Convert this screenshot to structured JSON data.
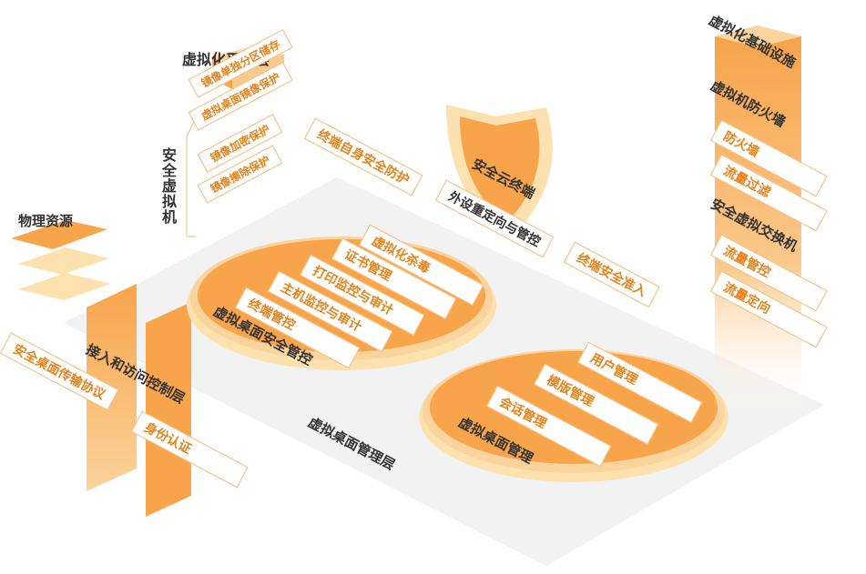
{
  "platform_layer": {
    "title": "虚拟化平台层",
    "side_label": "安全虚拟机",
    "items": [
      "镜像单独分区储存",
      "虚拟桌面镜像保护",
      "镜像加密保护",
      "镜像擦除保护"
    ]
  },
  "endpoint": {
    "self_protect": "终端自身安全防护",
    "cloud_terminal": "安全云终端",
    "peripheral": "外设重定向与管控",
    "access": "终端安全准入"
  },
  "infrastructure": {
    "title": "虚拟化基础设施",
    "firewall_title": "虚拟机防火墙",
    "firewall_items": [
      "防火墙",
      "流量过滤"
    ],
    "switch_title": "安全虚拟交换机",
    "switch_items": [
      "流量管控",
      "流量定向"
    ]
  },
  "physical": {
    "title": "物理资源"
  },
  "access_layer": {
    "title": "接入和访问控制层",
    "protocol": "安全桌面传输协议",
    "auth": "身份认证"
  },
  "security_disc": {
    "title": "虚拟桌面安全管控",
    "items": [
      "终端管控",
      "主机监控与审计",
      "打印监控与审计",
      "证书管理",
      "虚拟化杀毒"
    ]
  },
  "management_disc": {
    "title": "虚拟桌面管理",
    "items": [
      "会话管理",
      "模版管理",
      "用户管理"
    ]
  },
  "management_layer": {
    "title": "虚拟桌面管理层"
  },
  "colors": {
    "orange": "#f7a44a",
    "light_orange": "#fbd39c",
    "pale": "#fde9c6",
    "text_orange": "#e8821a",
    "platform_gray": "#f2f2f2"
  }
}
